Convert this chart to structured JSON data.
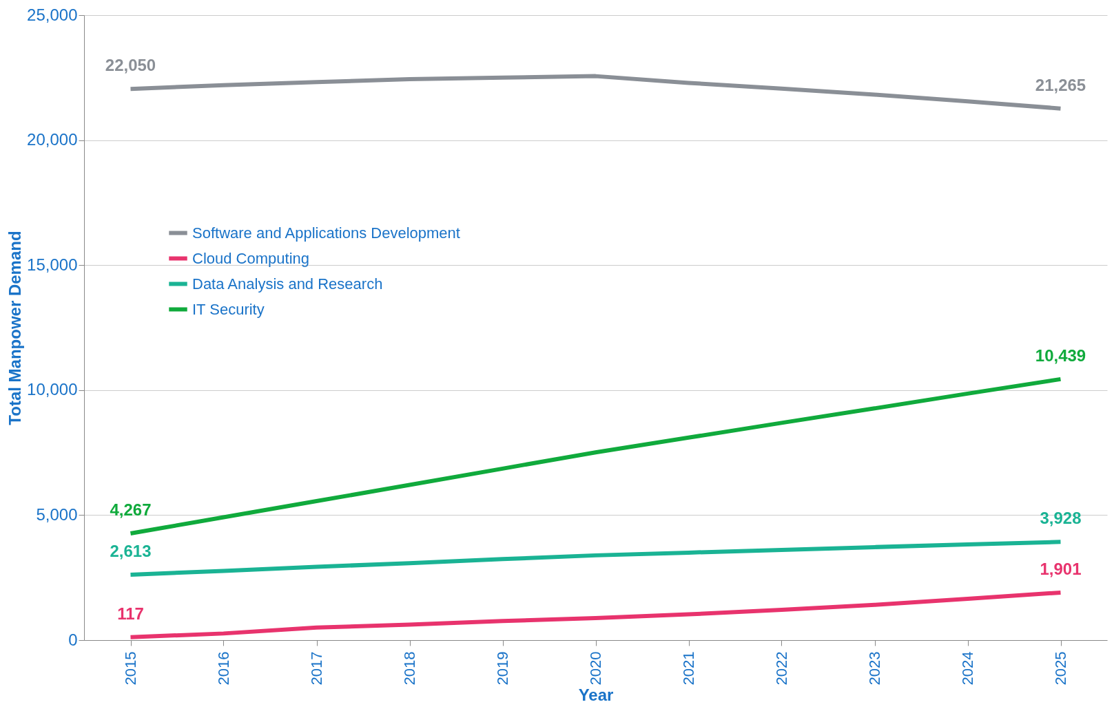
{
  "chart_data": {
    "type": "line",
    "xlabel": "Year",
    "ylabel": "Total Manpower Demand",
    "categories": [
      "2015",
      "2016",
      "2017",
      "2018",
      "2019",
      "2020",
      "2021",
      "2022",
      "2023",
      "2024",
      "2025"
    ],
    "series": [
      {
        "name": "Software and Applications Development",
        "color": "#8a8f96",
        "values": [
          22050,
          22200,
          22320,
          22440,
          22500,
          22560,
          22290,
          22060,
          21820,
          21550,
          21265
        ],
        "value_labels": [
          "22,050",
          null,
          null,
          null,
          null,
          null,
          null,
          null,
          null,
          null,
          "21,265"
        ]
      },
      {
        "name": "Cloud Computing",
        "color": "#e8336d",
        "values": [
          117,
          265,
          500,
          620,
          765,
          880,
          1030,
          1210,
          1410,
          1650,
          1901
        ],
        "value_labels": [
          "117",
          null,
          null,
          null,
          null,
          null,
          null,
          null,
          null,
          null,
          "1,901"
        ]
      },
      {
        "name": "Data Analysis and Research",
        "color": "#1ab394",
        "values": [
          2613,
          2770,
          2930,
          3080,
          3240,
          3390,
          3500,
          3610,
          3720,
          3830,
          3928
        ],
        "value_labels": [
          "2,613",
          null,
          null,
          null,
          null,
          null,
          null,
          null,
          null,
          null,
          "3,928"
        ]
      },
      {
        "name": "IT Security",
        "color": "#10aa3c",
        "values": [
          4267,
          4915,
          5560,
          6210,
          6860,
          7510,
          8100,
          8690,
          9270,
          9860,
          10439
        ],
        "value_labels": [
          "4,267",
          null,
          null,
          null,
          null,
          null,
          null,
          null,
          null,
          null,
          "10,439"
        ]
      }
    ],
    "ylim": [
      0,
      25000
    ],
    "yticks": [
      0,
      {
        "value": 5000,
        "label": "5,000"
      },
      {
        "value": 10000,
        "label": "10,000"
      },
      {
        "value": 15000,
        "label": "15,000"
      },
      {
        "value": 20000,
        "label": "20,000"
      },
      {
        "value": 25000,
        "label": "25,000"
      }
    ],
    "grid": "y",
    "legend": "left",
    "marker": "none",
    "line_style": "solid"
  }
}
